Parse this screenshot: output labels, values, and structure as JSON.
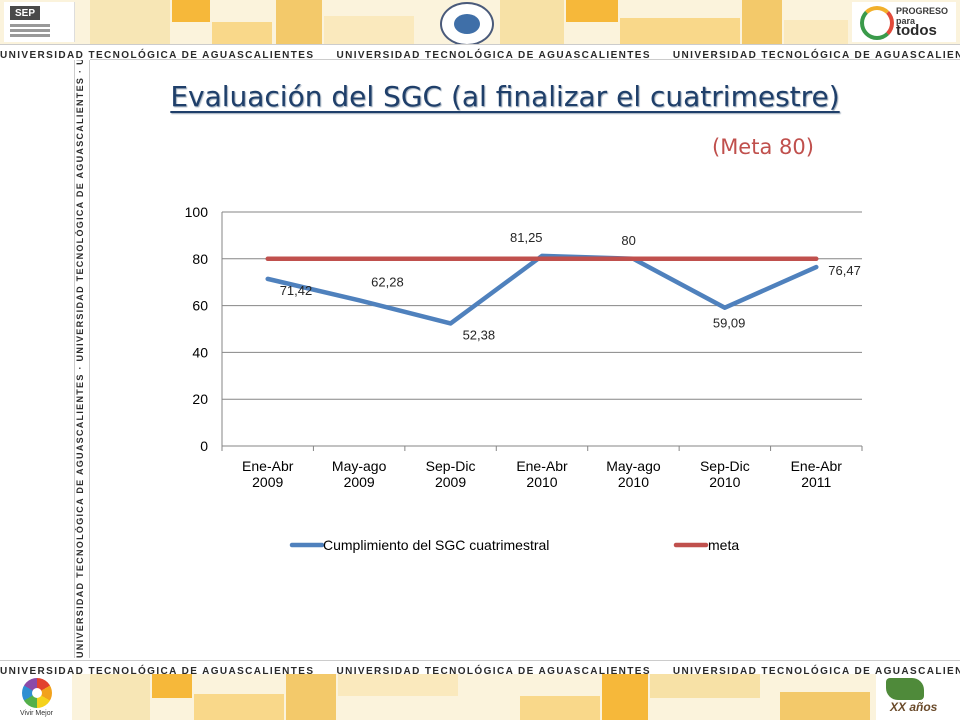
{
  "banner": {
    "university": "UNIVERSIDAD TECNOLÓGICA DE AGUASCALIENTES",
    "sep_label": "SEP",
    "progreso_line1": "PROGRESO",
    "progreso_line2": "para",
    "progreso_line3": "todos",
    "vivir_label": "Vivir Mejor",
    "xx_label": "XX años"
  },
  "slide": {
    "title": "Evaluación del SGC (al finalizar el cuatrimestre)",
    "subtitle": "(Meta 80)"
  },
  "chart_data": {
    "type": "line",
    "categories": [
      "Ene-Abr 2009",
      "May-ago 2009",
      "Sep-Dic 2009",
      "Ene-Abr 2010",
      "May-ago 2010",
      "Sep-Dic 2010",
      "Ene-Abr 2011"
    ],
    "ylim": [
      0,
      100
    ],
    "yticks": [
      0,
      20,
      40,
      60,
      80,
      100
    ],
    "grid": true,
    "legend_position": "bottom",
    "series": [
      {
        "name": "Cumplimiento del SGC cuatrimestral",
        "color": "#4f81bd",
        "values": [
          71.42,
          62.28,
          52.38,
          81.25,
          80,
          59.09,
          76.47
        ],
        "labels": [
          "71,42",
          "62,28",
          "52,38",
          "81,25",
          "80",
          "59,09",
          "76,47"
        ]
      },
      {
        "name": "meta",
        "color": "#c0504d",
        "values": [
          80,
          80,
          80,
          80,
          80,
          80,
          80
        ]
      }
    ]
  }
}
